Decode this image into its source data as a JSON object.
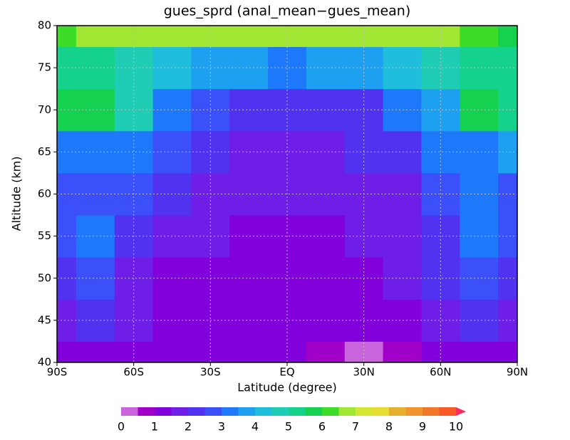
{
  "chart_data": {
    "type": "filled-contour",
    "title": "gues_sprd (anal_mean−gues_mean)",
    "x_label": "Latitude (degree)",
    "y_label": "Altitude (km)",
    "x": [
      -90,
      -75,
      -60,
      -45,
      -30,
      -15,
      0,
      15,
      30,
      45,
      60,
      75,
      90
    ],
    "y": [
      40,
      45,
      50,
      55,
      60,
      65,
      70,
      75,
      80
    ],
    "z": [
      [
        1.3,
        1.2,
        1.1,
        1.0,
        1.0,
        1.0,
        1.0,
        0.9,
        0.4,
        0.8,
        1.0,
        1.1,
        1.2
      ],
      [
        1.6,
        2.2,
        1.5,
        1.2,
        1.0,
        1.0,
        1.0,
        1.0,
        1.1,
        1.3,
        1.6,
        2.2,
        1.8
      ],
      [
        2.3,
        2.8,
        1.8,
        1.3,
        1.3,
        1.2,
        1.2,
        1.2,
        1.3,
        1.5,
        2.0,
        2.6,
        2.3
      ],
      [
        2.6,
        3.0,
        2.2,
        1.7,
        1.5,
        1.4,
        1.4,
        1.4,
        1.5,
        1.8,
        2.3,
        3.0,
        2.8
      ],
      [
        2.7,
        2.9,
        2.5,
        2.0,
        1.7,
        1.5,
        1.5,
        1.5,
        1.6,
        1.9,
        2.5,
        3.0,
        2.9
      ],
      [
        3.3,
        3.2,
        3.0,
        2.6,
        2.2,
        1.9,
        1.8,
        1.8,
        2.0,
        2.4,
        3.0,
        3.3,
        3.5
      ],
      [
        5.5,
        5.8,
        4.5,
        3.2,
        2.5,
        2.1,
        2.0,
        2.1,
        2.4,
        3.0,
        3.8,
        5.5,
        5.0
      ],
      [
        5.4,
        5.2,
        4.6,
        4.3,
        3.8,
        3.5,
        3.4,
        3.5,
        3.8,
        4.2,
        4.7,
        5.3,
        5.0
      ],
      [
        6.0,
        6.5,
        6.8,
        6.9,
        6.8,
        6.7,
        6.7,
        6.8,
        6.9,
        6.8,
        6.6,
        6.2,
        5.8
      ]
    ],
    "xlim": [
      -90,
      90
    ],
    "xticks": [
      {
        "value": -90,
        "label": "90S"
      },
      {
        "value": -60,
        "label": "60S"
      },
      {
        "value": -30,
        "label": "30S"
      },
      {
        "value": 0,
        "label": "EQ"
      },
      {
        "value": 30,
        "label": "30N"
      },
      {
        "value": 60,
        "label": "60N"
      },
      {
        "value": 90,
        "label": "90N"
      }
    ],
    "ylim": [
      40,
      80
    ],
    "yticks": [
      40,
      45,
      50,
      55,
      60,
      65,
      70,
      75,
      80
    ],
    "grid": true,
    "colorbar_lim": [
      0,
      10
    ],
    "colorbar_ticks": [
      0,
      1,
      2,
      3,
      4,
      5,
      6,
      7,
      8,
      9,
      10
    ],
    "colors": [
      "#c864dc",
      "#a000c8",
      "#8200dc",
      "#6e1ee6",
      "#5032f0",
      "#3c50fa",
      "#1e78fa",
      "#1ea0f0",
      "#1ebedc",
      "#1ecdb4",
      "#14d28c",
      "#14d250",
      "#3cdc28",
      "#a0e632",
      "#d2e632",
      "#e6dc32",
      "#e6af2d",
      "#f0962d",
      "#f07828",
      "#fa5a28",
      "#fa2d5a"
    ]
  }
}
